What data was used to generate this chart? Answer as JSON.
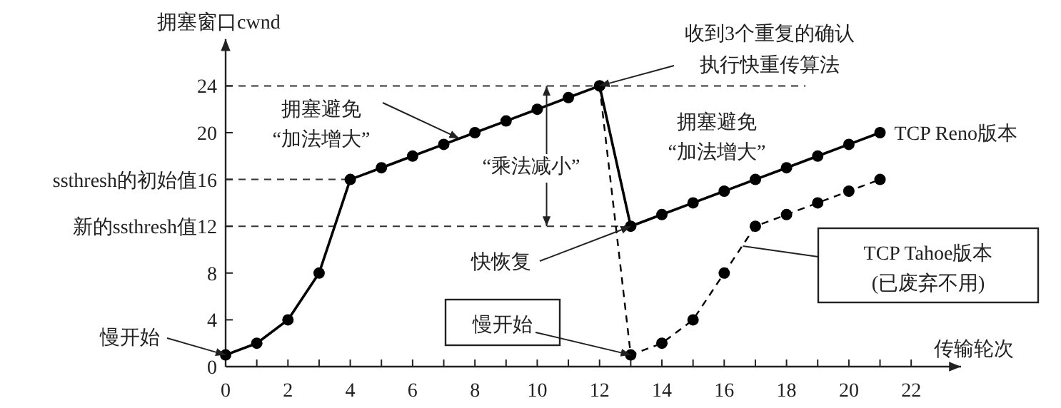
{
  "chart_data": {
    "type": "line",
    "xlabel": "传输轮次",
    "ylabel": "拥塞窗口cwnd",
    "xlim": [
      0,
      23.6
    ],
    "xticks": [
      0,
      2,
      4,
      6,
      8,
      10,
      12,
      14,
      16,
      18,
      20,
      22
    ],
    "ylim": [
      0,
      28
    ],
    "yticks": [
      0,
      4,
      8,
      {
        "value": 12,
        "label": "新的ssthresh值12"
      },
      {
        "value": 16,
        "label": "ssthresh的初始值16"
      },
      20,
      24
    ],
    "x": [
      0,
      1,
      2,
      3,
      4,
      5,
      6,
      7,
      8,
      9,
      10,
      11,
      12,
      13,
      14,
      15,
      16,
      17,
      18,
      19,
      20,
      21
    ],
    "series": [
      {
        "name": "TCP Reno版本",
        "color": "#000000",
        "line_style": "solid",
        "values": [
          1,
          2,
          4,
          8,
          16,
          17,
          18,
          19,
          20,
          21,
          22,
          23,
          24,
          12,
          13,
          14,
          15,
          16,
          17,
          18,
          19,
          20
        ]
      },
      {
        "name": "TCP Tahoe版本\n(已废弃不用)",
        "color": "#000000",
        "line_style": "dashed",
        "x": [
          12,
          13,
          14,
          15,
          16,
          17,
          18,
          19,
          20,
          21
        ],
        "values": [
          24,
          1,
          2,
          4,
          8,
          12,
          13,
          14,
          15,
          16
        ]
      }
    ],
    "marker": "circle",
    "legend": false,
    "ref_lines": [
      {
        "axis": "y",
        "value": 24,
        "line_style": "dashed"
      },
      {
        "axis": "y",
        "value": 16,
        "line_style": "dashed"
      },
      {
        "axis": "y",
        "value": 12,
        "line_style": "dashed"
      }
    ],
    "annotations": [
      {
        "text": "慢开始",
        "x": 0,
        "y": 1
      },
      {
        "text": "拥塞避免“加法增大”",
        "x": 7.5,
        "y": 19.5
      },
      {
        "text": "“乘法减小”",
        "x": 10.3,
        "y": 24
      },
      {
        "text": "收到3个重复的确认执行快重传算法",
        "x": 12,
        "y": 24
      },
      "拥塞避免“加法增大”",
      {
        "text": "快恢复",
        "x": 13,
        "y": 12
      },
      {
        "text": "慢开始",
        "x": 13,
        "y": 1
      }
    ]
  }
}
